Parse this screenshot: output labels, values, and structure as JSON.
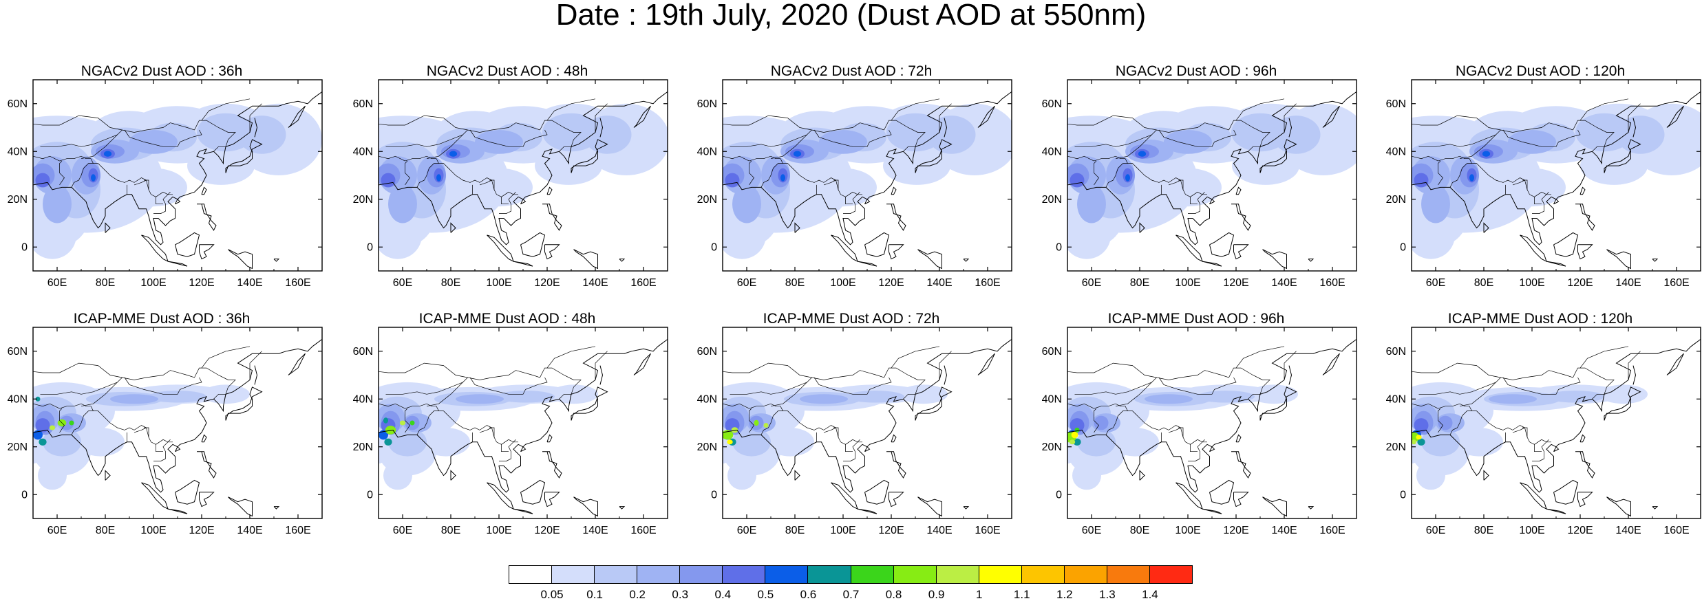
{
  "title": "Date : 19th July, 2020 (Dust AOD at 550nm)",
  "axes": {
    "lon_ticks": [
      "60E",
      "80E",
      "100E",
      "120E",
      "140E",
      "160E"
    ],
    "lon_values": [
      60,
      80,
      100,
      120,
      140,
      160
    ],
    "lat_ticks": [
      "0",
      "20N",
      "40N",
      "60N"
    ],
    "lat_values": [
      0,
      20,
      40,
      60
    ],
    "lon_range": [
      50,
      170
    ],
    "lat_range": [
      -10,
      70
    ]
  },
  "panels": [
    {
      "title": "NGACv2 Dust AOD : 36h",
      "model": "NGACv2",
      "lead_hours": 36
    },
    {
      "title": "NGACv2 Dust AOD : 48h",
      "model": "NGACv2",
      "lead_hours": 48
    },
    {
      "title": "NGACv2 Dust AOD : 72h",
      "model": "NGACv2",
      "lead_hours": 72
    },
    {
      "title": "NGACv2 Dust AOD : 96h",
      "model": "NGACv2",
      "lead_hours": 96
    },
    {
      "title": "NGACv2 Dust AOD : 120h",
      "model": "NGACv2",
      "lead_hours": 120
    },
    {
      "title": "ICAP-MME Dust AOD : 36h",
      "model": "ICAP-MME",
      "lead_hours": 36
    },
    {
      "title": "ICAP-MME Dust AOD : 48h",
      "model": "ICAP-MME",
      "lead_hours": 48
    },
    {
      "title": "ICAP-MME Dust AOD : 72h",
      "model": "ICAP-MME",
      "lead_hours": 72
    },
    {
      "title": "ICAP-MME Dust AOD : 96h",
      "model": "ICAP-MME",
      "lead_hours": 96
    },
    {
      "title": "ICAP-MME Dust AOD : 120h",
      "model": "ICAP-MME",
      "lead_hours": 120
    }
  ],
  "colorbar": {
    "labels": [
      "0.05",
      "0.1",
      "0.2",
      "0.3",
      "0.4",
      "0.5",
      "0.6",
      "0.7",
      "0.8",
      "0.9",
      "1",
      "1.1",
      "1.2",
      "1.3",
      "1.4"
    ],
    "colors": [
      "#ffffff",
      "#d4defb",
      "#b9c9f6",
      "#9fb3f3",
      "#8498ee",
      "#5f6fe8",
      "#0b5ee8",
      "#0a9596",
      "#3bd51b",
      "#87ec14",
      "#bbee44",
      "#ffff00",
      "#fdc500",
      "#fba300",
      "#f87a0d",
      "#ff2a13"
    ]
  },
  "map_colors": {
    "land_outline": "#000000",
    "dust_levels": [
      "#d4defb",
      "#b9c9f6",
      "#9fb3f3",
      "#8498ee",
      "#5f6fe8",
      "#0b5ee8",
      "#0a9596",
      "#3bd51b",
      "#87ec14",
      "#bbee44",
      "#ffff00"
    ]
  }
}
